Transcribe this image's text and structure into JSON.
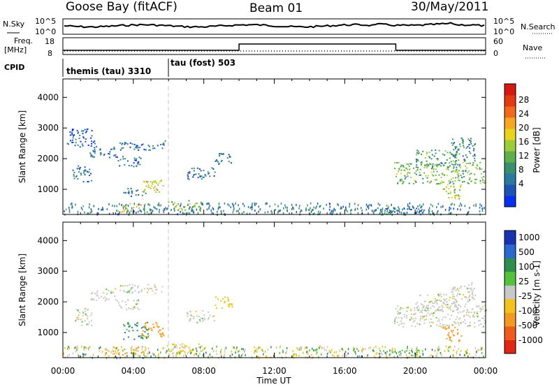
{
  "header": {
    "station": "Goose Bay (fitACF)",
    "beam": "Beam 01",
    "date": "30/May/2011"
  },
  "aux": {
    "nsky_label": "N.Sky",
    "nsky_ticks": [
      "10^5",
      "10^0"
    ],
    "nsearch_label": "N.Search",
    "nsearch_ticks": [
      "10^5",
      "10^0"
    ],
    "freq_label": "Freq.",
    "freq_unit": "[MHz]",
    "freq_ticks": [
      "18",
      "8"
    ],
    "nave_label": "Nave",
    "nave_ticks": [
      "60",
      "0"
    ],
    "cpid_label": "CPID",
    "cpid_segments": [
      "themis (tau) 3310",
      "tau (fost) 503"
    ]
  },
  "chart_data": [
    {
      "type": "heatmap",
      "title": "",
      "ylabel": "Slant Range [km]",
      "xlabel": "",
      "x_range_hours": [
        0,
        24
      ],
      "ylim": [
        180,
        4600
      ],
      "yticks": [
        "1000",
        "2000",
        "3000",
        "4000"
      ],
      "xticks": [
        "00:00",
        "04:00",
        "08:00",
        "12:00",
        "16:00",
        "20:00",
        "00:00"
      ],
      "colorbar": {
        "label": "Power [dB]",
        "ticks": [
          "28",
          "24",
          "20",
          "16",
          "12",
          "8",
          "4"
        ],
        "colors": [
          "#0a2ef0",
          "#1d54b4",
          "#2a7aa0",
          "#3a8f6e",
          "#5fb04d",
          "#9ccc3c",
          "#e8d420",
          "#f5a623",
          "#ef6a1a",
          "#e33a14",
          "#d41a12"
        ]
      },
      "blobs": [
        {
          "t0": 0.5,
          "t1": 1.6,
          "r0": 1250,
          "r1": 1800,
          "v": 6
        },
        {
          "t0": 1.5,
          "t1": 3.0,
          "r0": 2050,
          "r1": 2450,
          "v": 4
        },
        {
          "t0": 3.2,
          "t1": 5.8,
          "r0": 2300,
          "r1": 2600,
          "v": 5
        },
        {
          "t0": 3.0,
          "t1": 4.4,
          "r0": 1750,
          "r1": 2100,
          "v": 4
        },
        {
          "t0": 3.4,
          "t1": 4.8,
          "r0": 780,
          "r1": 1050,
          "v": 6
        },
        {
          "t0": 4.4,
          "t1": 5.7,
          "r0": 850,
          "r1": 1350,
          "v": 18
        },
        {
          "t0": 3.1,
          "t1": 4.7,
          "r0": 280,
          "r1": 560,
          "v": 18
        },
        {
          "t0": 5.9,
          "t1": 7.9,
          "r0": 300,
          "r1": 650,
          "v": 14
        },
        {
          "t0": 7.0,
          "t1": 8.6,
          "r0": 1350,
          "r1": 1750,
          "v": 5
        },
        {
          "t0": 8.6,
          "t1": 9.6,
          "r0": 1800,
          "r1": 2200,
          "v": 6
        },
        {
          "t0": 0.2,
          "t1": 1.8,
          "r0": 2400,
          "r1": 3000,
          "v": 3
        },
        {
          "t0": 18.8,
          "t1": 24.0,
          "r0": 1200,
          "r1": 1900,
          "v": 12
        },
        {
          "t0": 20.0,
          "t1": 22.5,
          "r0": 1700,
          "r1": 2300,
          "v": 10
        },
        {
          "t0": 21.5,
          "t1": 22.6,
          "r0": 700,
          "r1": 1200,
          "v": 16
        },
        {
          "t0": 22.0,
          "t1": 23.4,
          "r0": 1900,
          "r1": 2700,
          "v": 7
        },
        {
          "t0": 17.8,
          "t1": 20.5,
          "r0": 250,
          "r1": 450,
          "v": 5
        }
      ]
    },
    {
      "type": "heatmap",
      "title": "",
      "ylabel": "Slant Range [km]",
      "xlabel": "Time UT",
      "x_range_hours": [
        0,
        24
      ],
      "ylim": [
        180,
        4600
      ],
      "yticks": [
        "1000",
        "2000",
        "3000",
        "4000"
      ],
      "xticks": [
        "00:00",
        "04:00",
        "08:00",
        "12:00",
        "16:00",
        "20:00",
        "00:00"
      ],
      "colorbar": {
        "label": "Velocity [m s-1]",
        "ticks": [
          "1000",
          "500",
          "100",
          "25",
          "-25",
          "-100",
          "-500",
          "-1000"
        ],
        "colors": [
          "#1a32b0",
          "#2a6ad0",
          "#2f8e4e",
          "#54c23c",
          "#c8c8c8",
          "#f2c21e",
          "#f39a22",
          "#ee5b1a",
          "#e02614"
        ]
      },
      "blobs": [
        {
          "t0": 0.5,
          "t1": 1.6,
          "r0": 1250,
          "r1": 1800,
          "v": 0
        },
        {
          "t0": 1.5,
          "t1": 3.0,
          "r0": 2050,
          "r1": 2450,
          "v": 0
        },
        {
          "t0": 3.2,
          "t1": 5.8,
          "r0": 2300,
          "r1": 2600,
          "v": 0
        },
        {
          "t0": 3.0,
          "t1": 4.4,
          "r0": 1750,
          "r1": 2100,
          "v": 0
        },
        {
          "t0": 3.4,
          "t1": 4.8,
          "r0": 800,
          "r1": 1350,
          "v": 80
        },
        {
          "t0": 4.4,
          "t1": 5.7,
          "r0": 850,
          "r1": 1350,
          "v": -150
        },
        {
          "t0": 2.8,
          "t1": 4.8,
          "r0": 280,
          "r1": 560,
          "v": -120
        },
        {
          "t0": 5.9,
          "t1": 7.9,
          "r0": 300,
          "r1": 650,
          "v": -40
        },
        {
          "t0": 7.0,
          "t1": 8.6,
          "r0": 1350,
          "r1": 1750,
          "v": 0
        },
        {
          "t0": 8.6,
          "t1": 9.6,
          "r0": 1800,
          "r1": 2200,
          "v": -60
        },
        {
          "t0": 18.8,
          "t1": 24.0,
          "r0": 1200,
          "r1": 1900,
          "v": 0
        },
        {
          "t0": 20.0,
          "t1": 22.5,
          "r0": 1700,
          "r1": 2300,
          "v": 0
        },
        {
          "t0": 21.5,
          "t1": 22.6,
          "r0": 700,
          "r1": 1200,
          "v": -150
        },
        {
          "t0": 22.0,
          "t1": 23.4,
          "r0": 1900,
          "r1": 2700,
          "v": 0
        },
        {
          "t0": 17.8,
          "t1": 20.5,
          "r0": 250,
          "r1": 450,
          "v": 50
        }
      ]
    }
  ]
}
